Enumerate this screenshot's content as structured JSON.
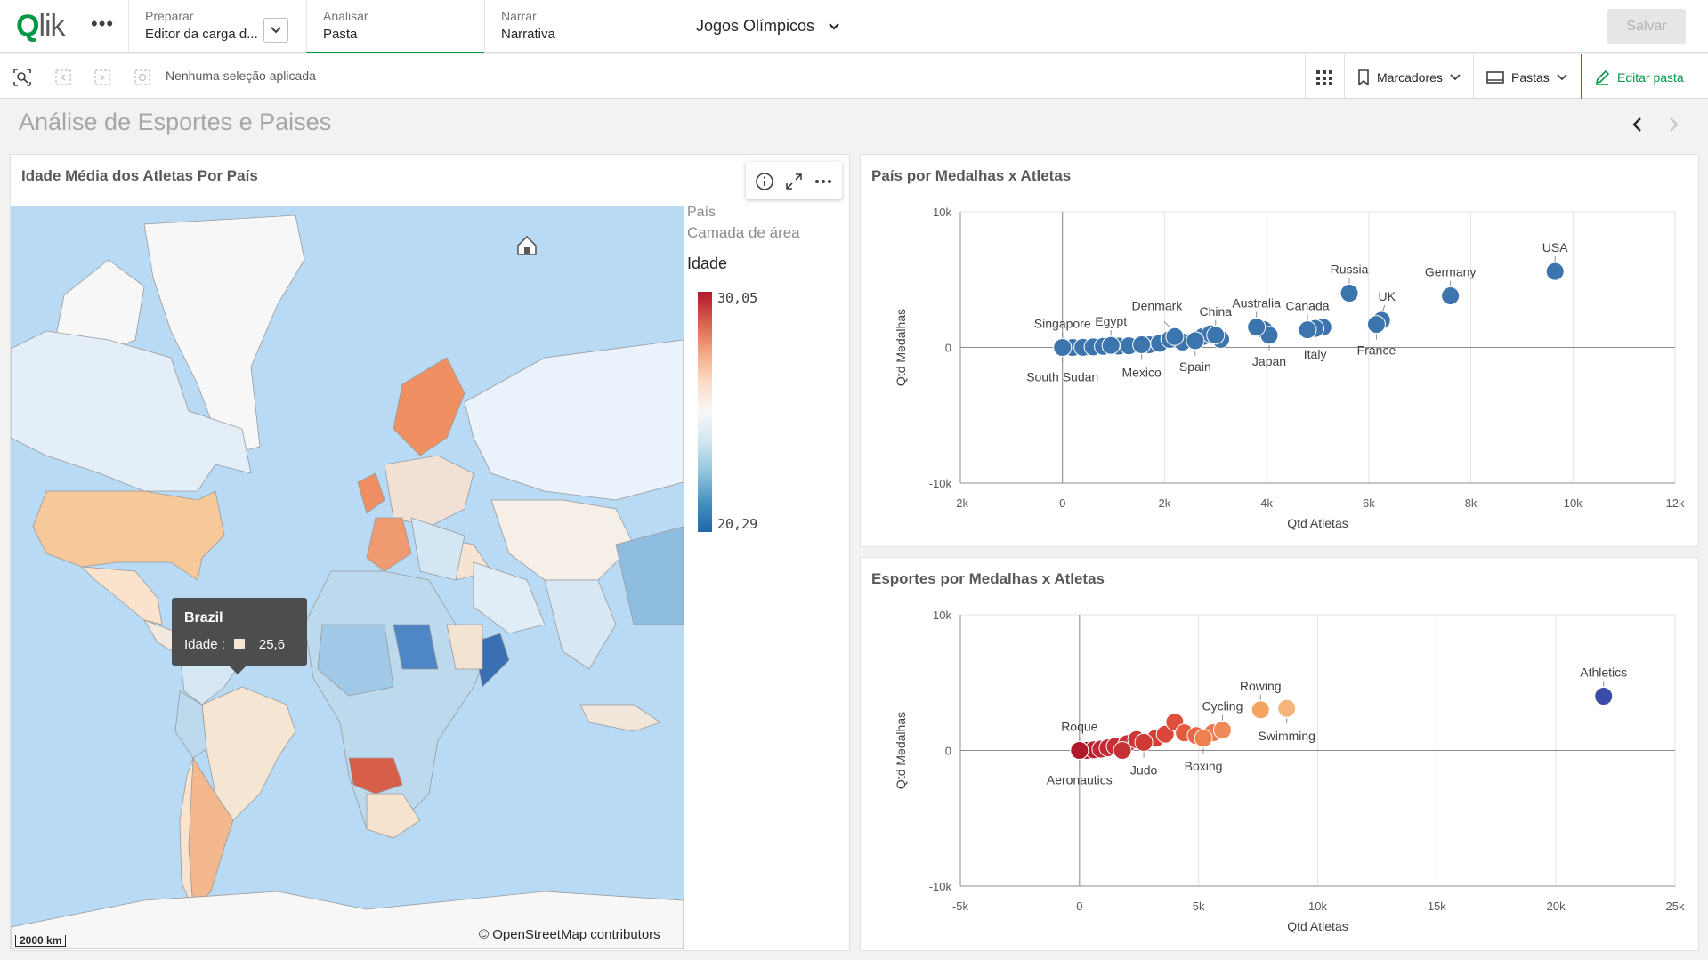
{
  "nav": {
    "logo": "Qlik",
    "tabs": [
      {
        "sup": "Preparar",
        "main": "Editor da carga d..."
      },
      {
        "sup": "Analisar",
        "main": "Pasta"
      },
      {
        "sup": "Narrar",
        "main": "Narrativa"
      }
    ],
    "app_title": "Jogos Olímpicos",
    "save_label": "Salvar"
  },
  "toolbar": {
    "no_selection": "Nenhuma seleção aplicada",
    "bookmarks": "Marcadores",
    "sheets": "Pastas",
    "edit_sheet": "Editar pasta"
  },
  "sheet": {
    "title": "Análise de Esportes e Paises"
  },
  "map_panel": {
    "title": "Idade Média dos Atletas Por País",
    "legend": {
      "layer_name": "País",
      "layer_type": "Camada de área",
      "measure": "Idade",
      "max": "30,05",
      "min": "20,29"
    },
    "tooltip": {
      "country": "Brazil",
      "label": "Idade :",
      "value": "25,6"
    },
    "scale_label": "2000 km",
    "attribution_prefix": "© ",
    "attribution_link": "OpenStreetMap contributors"
  },
  "chart_data": [
    {
      "type": "scatter",
      "title": "País por Medalhas x Atletas",
      "xlabel": "Qtd Atletas",
      "ylabel": "Qtd Medalhas",
      "xlim": [
        -2000,
        12000
      ],
      "ylim": [
        -10000,
        10000
      ],
      "xticks": [
        "-2k",
        "0",
        "2k",
        "4k",
        "6k",
        "8k",
        "10k",
        "12k"
      ],
      "yticks": [
        "10k",
        "0",
        "-10k"
      ],
      "labeled_points": [
        {
          "label": "USA",
          "x": 9650,
          "y": 5600
        },
        {
          "label": "Germany",
          "x": 7600,
          "y": 3800
        },
        {
          "label": "Russia",
          "x": 5620,
          "y": 4000
        },
        {
          "label": "UK",
          "x": 6250,
          "y": 2000
        },
        {
          "label": "France",
          "x": 6150,
          "y": 1700
        },
        {
          "label": "Italy",
          "x": 4950,
          "y": 1400
        },
        {
          "label": "Canada",
          "x": 4800,
          "y": 1300
        },
        {
          "label": "Japan",
          "x": 4050,
          "y": 900
        },
        {
          "label": "Australia",
          "x": 3800,
          "y": 1500
        },
        {
          "label": "China",
          "x": 3000,
          "y": 900
        },
        {
          "label": "Spain",
          "x": 2600,
          "y": 500
        },
        {
          "label": "Denmark",
          "x": 2200,
          "y": 800
        },
        {
          "label": "Mexico",
          "x": 1550,
          "y": 200
        },
        {
          "label": "Egypt",
          "x": 950,
          "y": 150
        },
        {
          "label": "Singapore",
          "x": 0,
          "y": 0
        },
        {
          "label": "South Sudan",
          "x": 0,
          "y": 0
        }
      ],
      "other_points": [
        [
          200,
          0
        ],
        [
          400,
          10
        ],
        [
          600,
          40
        ],
        [
          800,
          80
        ],
        [
          1100,
          100
        ],
        [
          1300,
          120
        ],
        [
          1700,
          200
        ],
        [
          1900,
          300
        ],
        [
          2100,
          600
        ],
        [
          2350,
          400
        ],
        [
          2750,
          800
        ],
        [
          2900,
          1000
        ],
        [
          3100,
          600
        ],
        [
          3950,
          1300
        ],
        [
          5100,
          1500
        ]
      ]
    },
    {
      "type": "scatter",
      "title": "Esportes por Medalhas x Atletas",
      "xlabel": "Qtd Atletas",
      "ylabel": "Qtd Medalhas",
      "xlim": [
        -5000,
        25000
      ],
      "ylim": [
        -10000,
        10000
      ],
      "xticks": [
        "-5k",
        "0",
        "5k",
        "10k",
        "15k",
        "20k",
        "25k"
      ],
      "yticks": [
        "10k",
        "0",
        "-10k"
      ],
      "labeled_points": [
        {
          "label": "Athletics",
          "x": 22000,
          "y": 4000,
          "color": "#3b4ba8"
        },
        {
          "label": "Rowing",
          "x": 7600,
          "y": 3000,
          "color": "#f4a460"
        },
        {
          "label": "Swimming",
          "x": 8700,
          "y": 3100,
          "color": "#f5b57a"
        },
        {
          "label": "Cycling",
          "x": 6000,
          "y": 1500,
          "color": "#ef8a5a"
        },
        {
          "label": "Boxing",
          "x": 5200,
          "y": 900,
          "color": "#ee8050"
        },
        {
          "label": "Judo",
          "x": 2700,
          "y": 600,
          "color": "#cf3a35"
        },
        {
          "label": "Roque",
          "x": 0,
          "y": 0,
          "color": "#b2182b"
        },
        {
          "label": "Aeronautics",
          "x": 0,
          "y": 0,
          "color": "#b2182b"
        }
      ],
      "other_points": [
        [
          300,
          0,
          "#b71c2e"
        ],
        [
          600,
          50,
          "#bb2231"
        ],
        [
          900,
          100,
          "#be2733"
        ],
        [
          1200,
          200,
          "#c12b34"
        ],
        [
          1500,
          300,
          "#c53035"
        ],
        [
          2000,
          500,
          "#c83436"
        ],
        [
          2400,
          800,
          "#cc3837"
        ],
        [
          3200,
          900,
          "#d43f38"
        ],
        [
          3600,
          1200,
          "#d9473a"
        ],
        [
          4000,
          2100,
          "#de4f3c"
        ],
        [
          4400,
          1300,
          "#e35a40"
        ],
        [
          4900,
          1100,
          "#e86646"
        ],
        [
          5600,
          1300,
          "#ec7a50"
        ],
        [
          1800,
          0,
          "#c53136"
        ]
      ]
    }
  ]
}
